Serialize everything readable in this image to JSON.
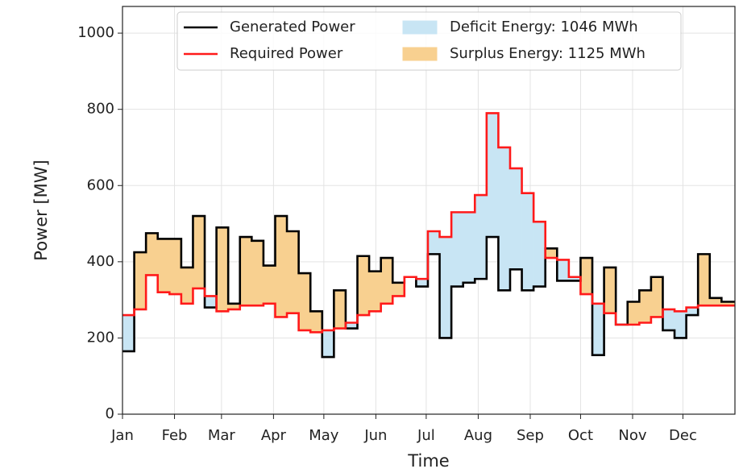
{
  "chart_data": {
    "type": "step",
    "xlabel": "Time",
    "ylabel": "Power [MW]",
    "x": [
      0,
      7,
      14,
      21,
      28,
      35,
      42,
      49,
      56,
      63,
      70,
      77,
      84,
      91,
      98,
      105,
      112,
      119,
      126,
      133,
      140,
      147,
      154,
      161,
      168,
      175,
      182,
      189,
      196,
      203,
      210,
      217,
      224,
      231,
      238,
      245,
      252,
      259,
      266,
      273,
      280,
      287,
      294,
      301,
      308,
      315,
      322,
      329,
      336,
      343,
      350,
      357
    ],
    "xlim": [
      0,
      365
    ],
    "ylim": [
      0,
      1070
    ],
    "xticks": [
      {
        "value": 0,
        "label": "Jan"
      },
      {
        "value": 31,
        "label": "Feb"
      },
      {
        "value": 59,
        "label": "Mar"
      },
      {
        "value": 90,
        "label": "Apr"
      },
      {
        "value": 120,
        "label": "May"
      },
      {
        "value": 151,
        "label": "Jun"
      },
      {
        "value": 181,
        "label": "Jul"
      },
      {
        "value": 212,
        "label": "Aug"
      },
      {
        "value": 243,
        "label": "Sep"
      },
      {
        "value": 273,
        "label": "Oct"
      },
      {
        "value": 304,
        "label": "Nov"
      },
      {
        "value": 334,
        "label": "Dec"
      }
    ],
    "yticks": [
      0,
      200,
      400,
      600,
      800,
      1000
    ],
    "grid": true,
    "legend": "upper center",
    "series": [
      {
        "name": "Generated Power",
        "color": "#000000",
        "values": [
          165,
          425,
          475,
          460,
          460,
          385,
          520,
          280,
          490,
          290,
          465,
          455,
          390,
          520,
          480,
          370,
          270,
          150,
          325,
          225,
          415,
          375,
          410,
          345,
          360,
          335,
          420,
          200,
          335,
          345,
          355,
          465,
          325,
          380,
          325,
          335,
          435,
          350,
          350,
          410,
          155,
          385,
          235,
          295,
          325,
          360,
          220,
          200,
          260,
          420,
          305,
          295
        ]
      },
      {
        "name": "Required Power",
        "color": "#ff1a1a",
        "values": [
          260,
          275,
          365,
          320,
          315,
          290,
          330,
          310,
          270,
          275,
          285,
          285,
          290,
          255,
          265,
          220,
          215,
          220,
          225,
          240,
          260,
          270,
          290,
          310,
          360,
          355,
          480,
          465,
          530,
          530,
          575,
          790,
          700,
          645,
          580,
          505,
          410,
          405,
          360,
          315,
          290,
          265,
          235,
          235,
          240,
          255,
          275,
          270,
          280,
          285,
          285,
          285
        ]
      }
    ],
    "fills": [
      {
        "name": "Deficit Energy: 1046 MWh",
        "color": "#c8e5f4"
      },
      {
        "name": "Surplus Energy: 1125 MWh",
        "color": "#f8d090"
      }
    ]
  }
}
